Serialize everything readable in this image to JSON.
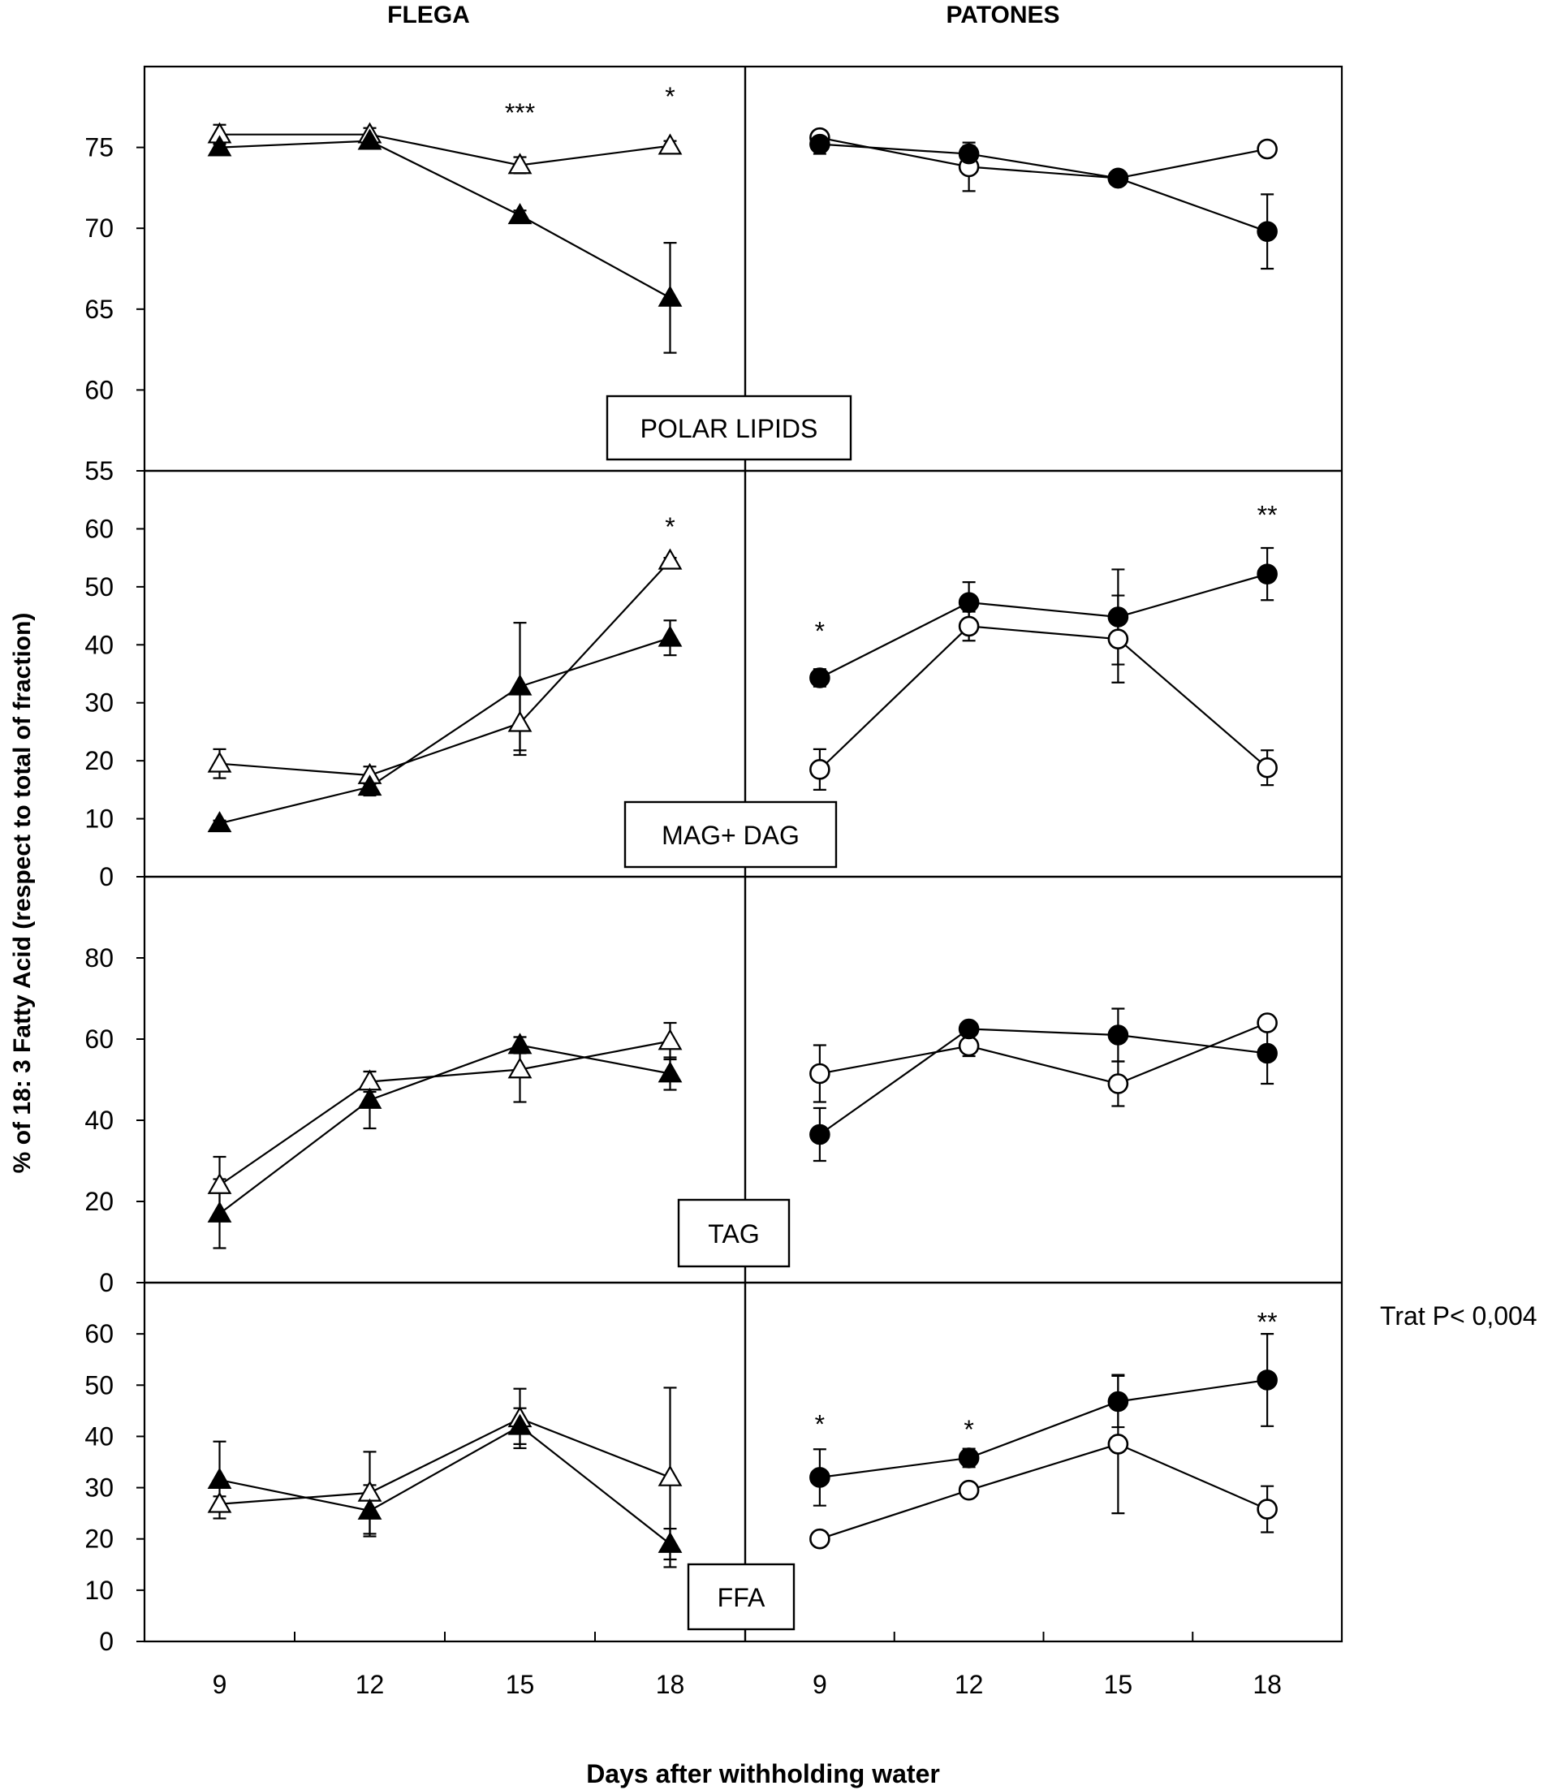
{
  "figure": {
    "ylabel": "% of 18: 3 Fatty Acid  (respect to total of fraction)",
    "xlabel": "Days after withholding water",
    "columns": [
      "FLEGA",
      "PATONES"
    ],
    "side_note": "Trat P< 0,004"
  },
  "chart_data": [
    {
      "type": "line",
      "panel": "POLAR LIPIDS",
      "cultivar": "FLEGA",
      "x": [
        9,
        12,
        15,
        18
      ],
      "xlim": [
        7.5,
        19.5
      ],
      "ylim": [
        55,
        80
      ],
      "yticks": [
        55,
        60,
        65,
        70,
        75
      ],
      "series": [
        {
          "name": "FLEGA open",
          "marker": "triangle-open",
          "values": [
            75.8,
            75.8,
            73.9,
            75.1
          ],
          "errors": [
            0.6,
            0.4,
            0.5,
            0.3
          ]
        },
        {
          "name": "FLEGA filled",
          "marker": "triangle-filled",
          "values": [
            75.0,
            75.4,
            70.8,
            65.7
          ],
          "errors": [
            0.3,
            0.4,
            0.3,
            3.4
          ]
        }
      ],
      "annotations": [
        {
          "x": 15,
          "text": "***",
          "y": 77.2
        },
        {
          "x": 18,
          "text": "*",
          "y": 78.2
        }
      ]
    },
    {
      "type": "line",
      "panel": "POLAR LIPIDS",
      "cultivar": "PATONES",
      "x": [
        9,
        12,
        15,
        18
      ],
      "xlim": [
        7.5,
        19.5
      ],
      "ylim": [
        55,
        80
      ],
      "yticks": [
        55,
        60,
        65,
        70,
        75
      ],
      "series": [
        {
          "name": "PATONES open",
          "marker": "circle-open",
          "values": [
            75.6,
            73.8,
            73.1,
            74.9
          ],
          "errors": [
            0.3,
            1.5,
            0.3,
            0.3
          ]
        },
        {
          "name": "PATONES filled",
          "marker": "circle-filled",
          "values": [
            75.2,
            74.6,
            73.1,
            69.8
          ],
          "errors": [
            0.6,
            0.5,
            0.3,
            2.3
          ]
        }
      ],
      "annotations": []
    },
    {
      "type": "line",
      "panel": "MAG+ DAG",
      "cultivar": "FLEGA",
      "x": [
        9,
        12,
        15,
        18
      ],
      "xlim": [
        7.5,
        19.5
      ],
      "ylim": [
        0,
        70
      ],
      "yticks": [
        0,
        10,
        20,
        30,
        40,
        50,
        60
      ],
      "series": [
        {
          "name": "FLEGA open",
          "marker": "triangle-open",
          "values": [
            19.5,
            17.5,
            26.5,
            54.5
          ],
          "errors": [
            2.5,
            1.5,
            5.5,
            0.5
          ]
        },
        {
          "name": "FLEGA filled",
          "marker": "triangle-filled",
          "values": [
            9.2,
            15.5,
            32.8,
            41.2
          ],
          "errors": [
            0.5,
            1.5,
            11.0,
            3.0
          ]
        }
      ],
      "annotations": [
        {
          "x": 18,
          "text": "*",
          "y": 60.5
        }
      ]
    },
    {
      "type": "line",
      "panel": "MAG+ DAG",
      "cultivar": "PATONES",
      "x": [
        9,
        12,
        15,
        18
      ],
      "xlim": [
        7.5,
        19.5
      ],
      "ylim": [
        0,
        70
      ],
      "yticks": [
        0,
        10,
        20,
        30,
        40,
        50,
        60
      ],
      "series": [
        {
          "name": "PATONES open",
          "marker": "circle-open",
          "values": [
            18.5,
            43.2,
            41.0,
            18.8
          ],
          "errors": [
            3.5,
            2.5,
            7.5,
            3.0
          ]
        },
        {
          "name": "PATONES filled",
          "marker": "circle-filled",
          "values": [
            34.3,
            47.3,
            44.8,
            52.2
          ],
          "errors": [
            1.5,
            3.5,
            8.2,
            4.5
          ]
        }
      ],
      "annotations": [
        {
          "x": 9,
          "text": "*",
          "y": 42.5
        },
        {
          "x": 18,
          "text": "**",
          "y": 62.5
        }
      ]
    },
    {
      "type": "line",
      "panel": "TAG",
      "cultivar": "FLEGA",
      "x": [
        9,
        12,
        15,
        18
      ],
      "xlim": [
        7.5,
        19.5
      ],
      "ylim": [
        0,
        100
      ],
      "yticks": [
        0,
        20,
        40,
        60,
        80
      ],
      "series": [
        {
          "name": "FLEGA open",
          "marker": "triangle-open",
          "values": [
            24.0,
            49.5,
            52.5,
            59.5
          ],
          "errors": [
            7.0,
            2.5,
            8.0,
            4.5
          ]
        },
        {
          "name": "FLEGA filled",
          "marker": "triangle-filled",
          "values": [
            17.0,
            45.0,
            58.5,
            51.5
          ],
          "errors": [
            8.5,
            7.0,
            2.0,
            4.0
          ]
        }
      ],
      "annotations": []
    },
    {
      "type": "line",
      "panel": "TAG",
      "cultivar": "PATONES",
      "x": [
        9,
        12,
        15,
        18
      ],
      "xlim": [
        7.5,
        19.5
      ],
      "ylim": [
        0,
        100
      ],
      "yticks": [
        0,
        20,
        40,
        60,
        80
      ],
      "series": [
        {
          "name": "PATONES open",
          "marker": "circle-open",
          "values": [
            51.5,
            58.3,
            49.0,
            64.0
          ],
          "errors": [
            7.0,
            2.5,
            5.5,
            1.0
          ]
        },
        {
          "name": "PATONES filled",
          "marker": "circle-filled",
          "values": [
            36.5,
            62.5,
            61.0,
            56.5
          ],
          "errors": [
            6.5,
            1.0,
            6.5,
            7.5
          ]
        }
      ],
      "annotations": []
    },
    {
      "type": "line",
      "panel": "FFA",
      "cultivar": "FLEGA",
      "x": [
        9,
        12,
        15,
        18
      ],
      "xlim": [
        7.5,
        19.5
      ],
      "ylim": [
        0,
        70
      ],
      "yticks": [
        0,
        10,
        20,
        30,
        40,
        50,
        60
      ],
      "series": [
        {
          "name": "FLEGA open",
          "marker": "triangle-open",
          "values": [
            26.8,
            29.0,
            43.5,
            32.0
          ],
          "errors": [
            1.5,
            8.0,
            5.8,
            17.5
          ]
        },
        {
          "name": "FLEGA filled",
          "marker": "triangle-filled",
          "values": [
            31.5,
            25.5,
            42.0,
            19.0
          ],
          "errors": [
            7.5,
            5.0,
            3.5,
            3.0
          ]
        }
      ],
      "annotations": []
    },
    {
      "type": "line",
      "panel": "FFA",
      "cultivar": "PATONES",
      "x": [
        9,
        12,
        15,
        18
      ],
      "xlim": [
        7.5,
        19.5
      ],
      "ylim": [
        0,
        70
      ],
      "yticks": [
        0,
        10,
        20,
        30,
        40,
        50,
        60
      ],
      "series": [
        {
          "name": "PATONES open",
          "marker": "circle-open",
          "values": [
            20.0,
            29.5,
            38.5,
            25.8
          ],
          "errors": [
            0.5,
            1.2,
            13.5,
            4.5
          ]
        },
        {
          "name": "PATONES filled",
          "marker": "circle-filled",
          "values": [
            32.0,
            35.8,
            46.8,
            51.0
          ],
          "errors": [
            5.5,
            1.8,
            5.0,
            9.0
          ]
        }
      ],
      "annotations": [
        {
          "x": 9,
          "text": "*",
          "y": 42.5
        },
        {
          "x": 12,
          "text": "*",
          "y": 41.5
        },
        {
          "x": 18,
          "text": "**",
          "y": 62.5
        }
      ]
    }
  ]
}
